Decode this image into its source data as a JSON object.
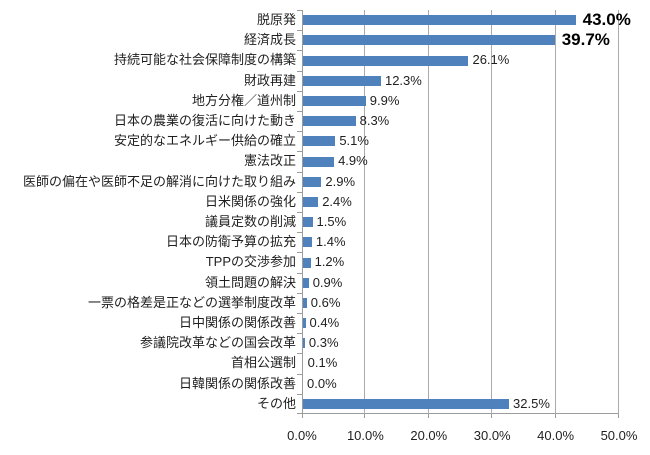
{
  "chart_data": {
    "type": "bar",
    "orientation": "horizontal",
    "title": "",
    "xlabel": "",
    "ylabel": "",
    "xlim": [
      0,
      50
    ],
    "x_ticks": [
      "0.0%",
      "10.0%",
      "20.0%",
      "30.0%",
      "40.0%",
      "50.0%"
    ],
    "grid": true,
    "legend": false,
    "bar_color": "#4f81bd",
    "gridline_color": "#ababab",
    "axis_color": "#9c9c9c",
    "text_color": "#1f1f1f",
    "emphasized_indices": [
      0,
      1
    ],
    "categories": [
      "脱原発",
      "経済成長",
      "持続可能な社会保障制度の構築",
      "財政再建",
      "地方分権／道州制",
      "日本の農業の復活に向けた動き",
      "安定的なエネルギー供給の確立",
      "憲法改正",
      "医師の偏在や医師不足の解消に向けた取り組み",
      "日米関係の強化",
      "議員定数の削減",
      "日本の防衛予算の拡充",
      "TPPの交渉参加",
      "領土問題の解決",
      "一票の格差是正などの選挙制度改革",
      "日中関係の関係改善",
      "参議院改革などの国会改革",
      "首相公選制",
      "日韓関係の関係改善",
      "その他"
    ],
    "values": [
      43.0,
      39.7,
      26.1,
      12.3,
      9.9,
      8.3,
      5.1,
      4.9,
      2.9,
      2.4,
      1.5,
      1.4,
      1.2,
      0.9,
      0.6,
      0.4,
      0.3,
      0.1,
      0.0,
      32.5
    ],
    "value_labels": [
      "43.0%",
      "39.7%",
      "26.1%",
      "12.3%",
      "9.9%",
      "8.3%",
      "5.1%",
      "4.9%",
      "2.9%",
      "2.4%",
      "1.5%",
      "1.4%",
      "1.2%",
      "0.9%",
      "0.6%",
      "0.4%",
      "0.3%",
      "0.1%",
      "0.0%",
      "32.5%"
    ]
  }
}
